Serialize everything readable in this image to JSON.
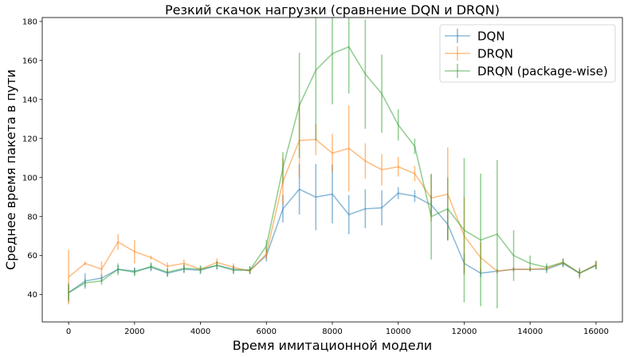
{
  "chart_data": {
    "type": "line",
    "title": "Резкий скачок нагрузки (сравнение DQN и DRQN)",
    "xlabel": "Время имитационной модели",
    "ylabel": "Среднее время пакета в пути",
    "xlim": [
      -800,
      16800
    ],
    "ylim": [
      26,
      182
    ],
    "xticks": [
      0,
      2000,
      4000,
      6000,
      8000,
      10000,
      12000,
      14000,
      16000
    ],
    "yticks": [
      40,
      60,
      80,
      100,
      120,
      140,
      160,
      180
    ],
    "x": [
      0,
      500,
      1000,
      1500,
      2000,
      2500,
      3000,
      3500,
      4000,
      4500,
      5000,
      5500,
      6000,
      6500,
      7000,
      7500,
      8000,
      8500,
      9000,
      9500,
      10000,
      10500,
      11000,
      11500,
      12000,
      12500,
      13000,
      13500,
      14000,
      14500,
      15000,
      15500,
      16000
    ],
    "legend_position": "top-right",
    "series": [
      {
        "name": "DQN",
        "color": "#1f77b4",
        "values": [
          41,
          47,
          48.5,
          53,
          52,
          54,
          51,
          53,
          52.5,
          55,
          53,
          52.5,
          60,
          84,
          94,
          90,
          91.5,
          81,
          84,
          84.5,
          92,
          90.5,
          86,
          76,
          56,
          51,
          52,
          53,
          53,
          53,
          56,
          51,
          55
        ],
        "errors": [
          5,
          4,
          2,
          2,
          2,
          2,
          2,
          2,
          2,
          2,
          2,
          2,
          3,
          7,
          13,
          17,
          15,
          10,
          10,
          9,
          3,
          3,
          5,
          8,
          5,
          2,
          1,
          1,
          1,
          2,
          2,
          2,
          2
        ]
      },
      {
        "name": "DRQN",
        "color": "#ff7f0e",
        "values": [
          49,
          56,
          53,
          67,
          62,
          59,
          54.5,
          56,
          53,
          56.5,
          54,
          52,
          61,
          98,
          119,
          119.5,
          112.5,
          115,
          108.5,
          104,
          105.5,
          102,
          89.5,
          91.5,
          70,
          59,
          52,
          53,
          53,
          53.5,
          56.5,
          51,
          55.5
        ],
        "errors": [
          14,
          1,
          4,
          4,
          6,
          1,
          2,
          2,
          1,
          2,
          2,
          1,
          3,
          12,
          19,
          8,
          10,
          22,
          9,
          8,
          5,
          4,
          12,
          24,
          20,
          8,
          1,
          1,
          1,
          1,
          2,
          3,
          2
        ]
      },
      {
        "name": "DRQN (package-wise)",
        "color": "#2ca02c",
        "values": [
          41,
          46,
          47,
          53,
          51.5,
          54.5,
          51.5,
          53.5,
          53,
          55,
          52.5,
          52.5,
          65,
          105,
          137,
          155,
          163.5,
          167,
          153,
          143,
          127,
          116,
          80,
          84,
          73,
          68,
          71,
          60,
          56,
          54,
          56.5,
          51,
          55
        ],
        "errors": [
          4,
          2,
          2,
          3,
          2,
          2,
          2,
          2,
          2,
          2,
          2,
          2,
          3,
          8,
          27,
          36,
          26,
          24,
          28,
          20,
          8,
          4,
          22,
          16,
          37,
          34,
          38,
          13,
          4,
          2,
          2,
          2,
          2
        ]
      }
    ]
  }
}
